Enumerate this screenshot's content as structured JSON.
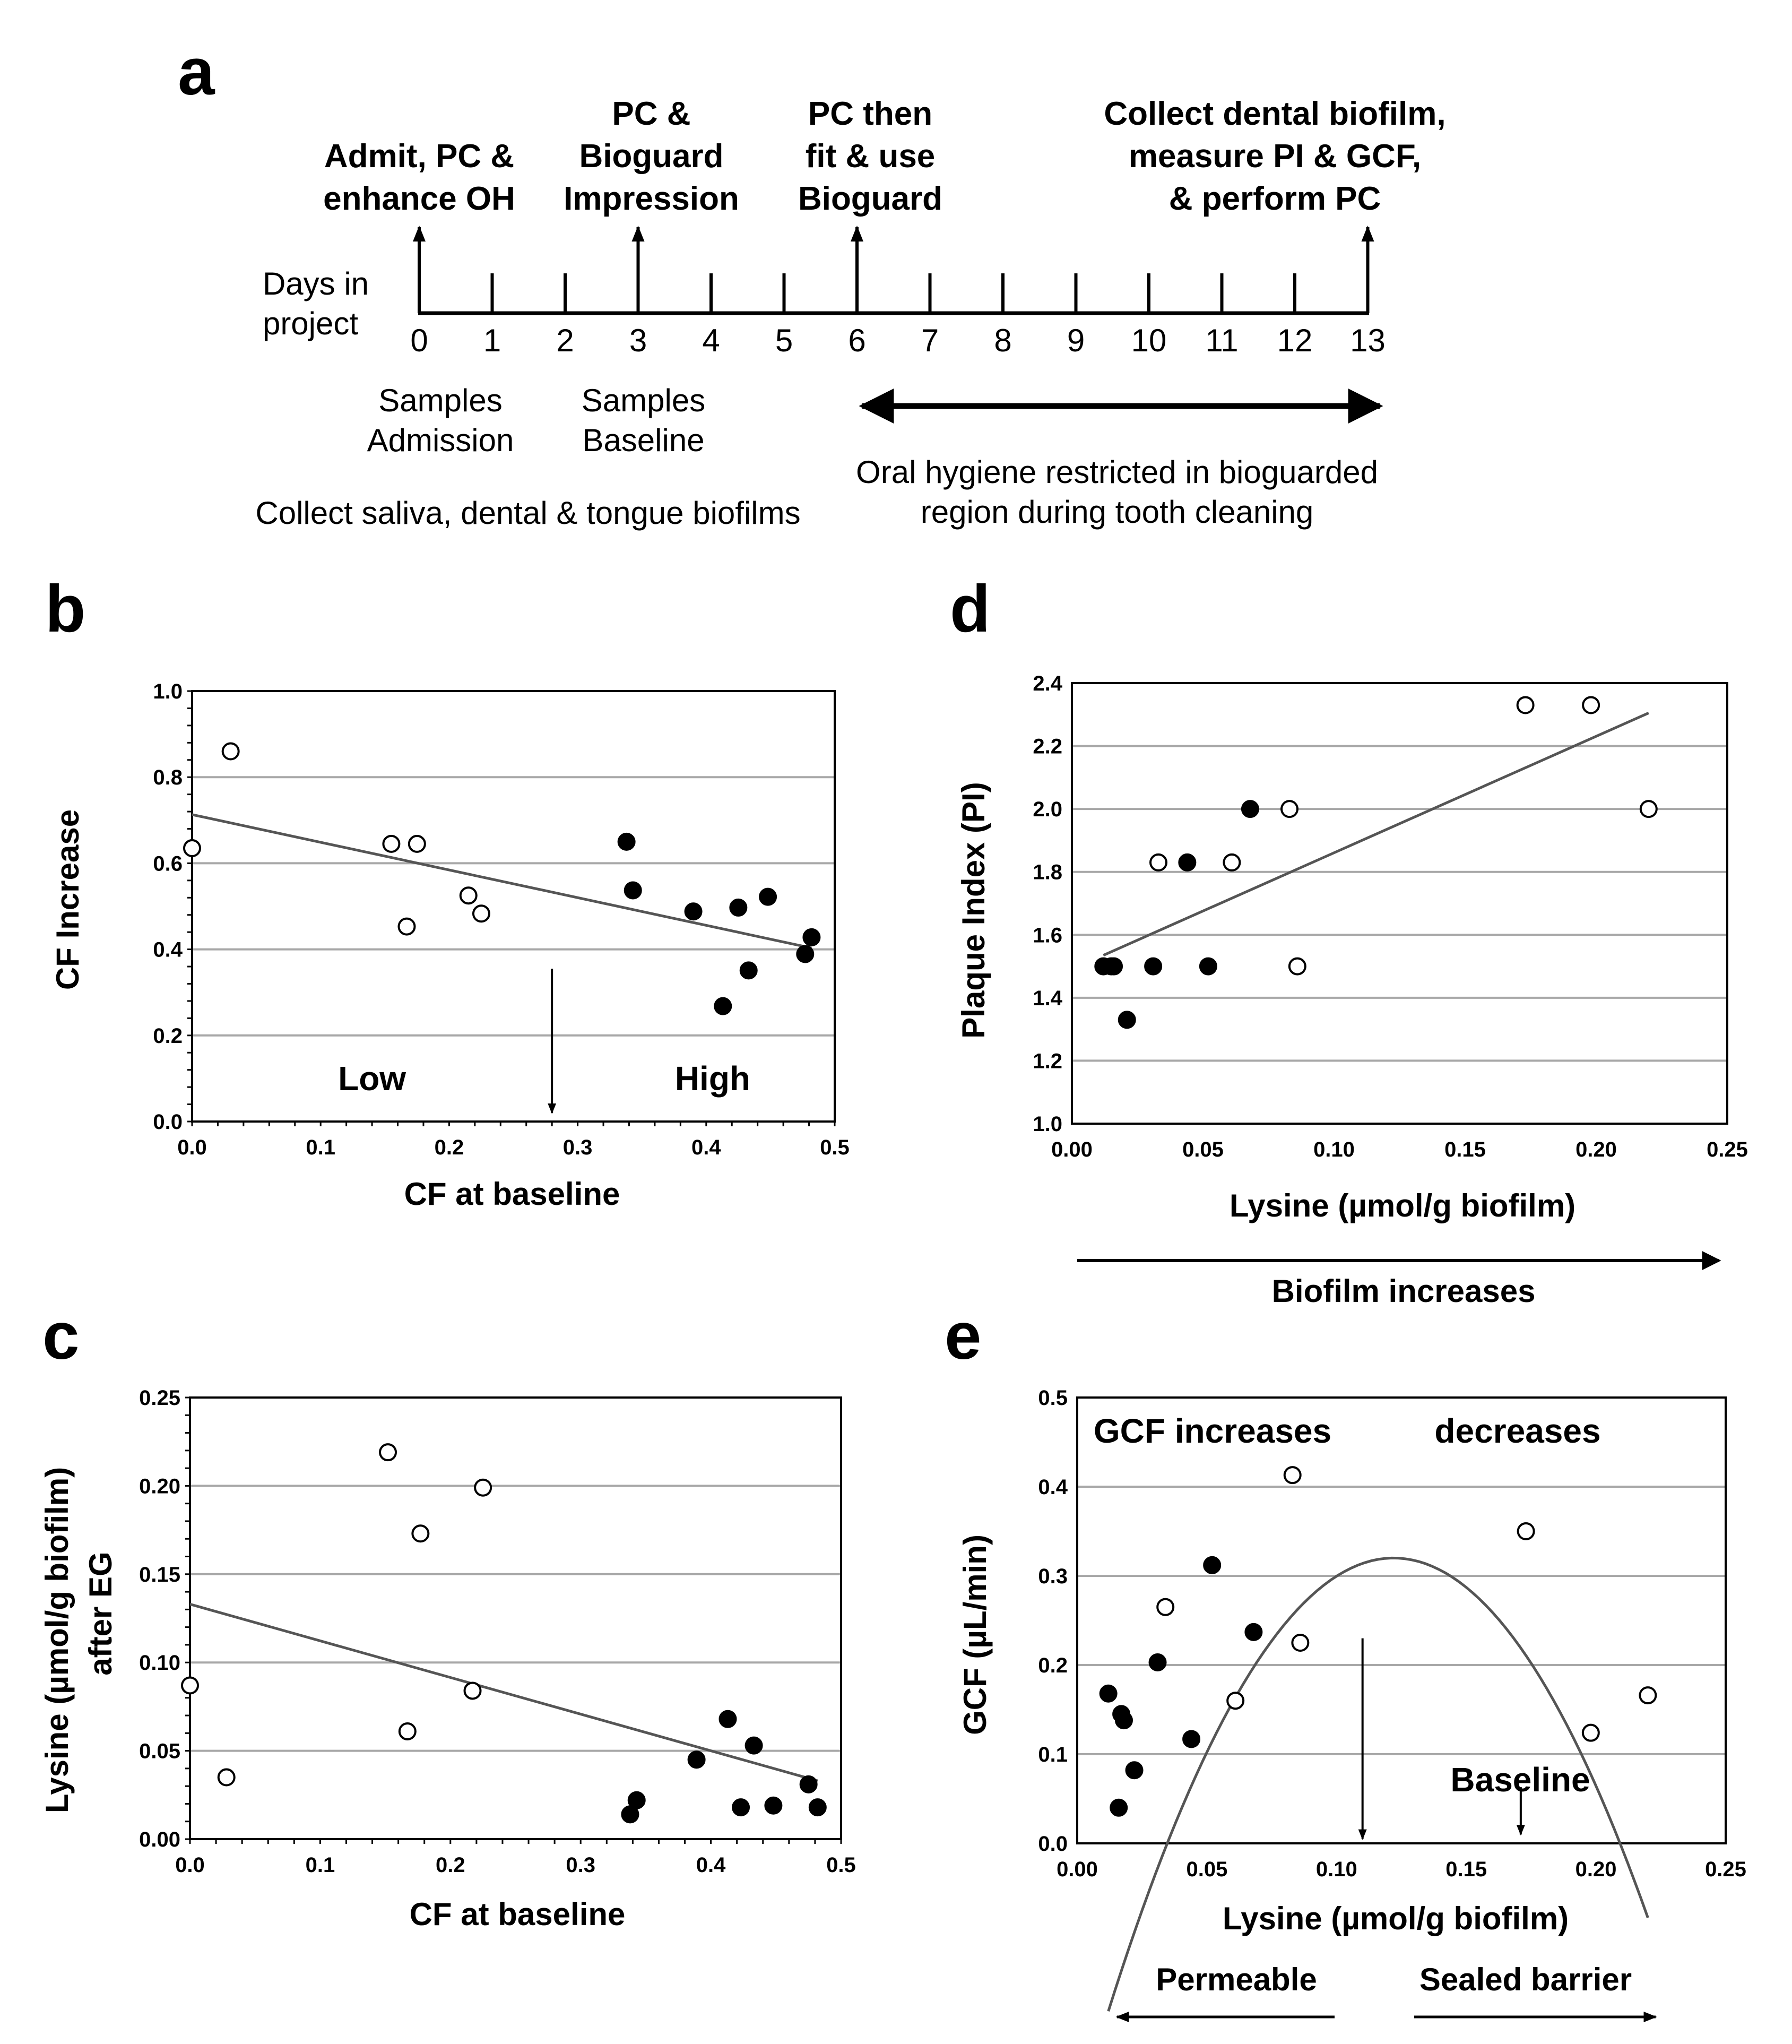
{
  "panel_a": {
    "letter": "a",
    "days_label_lines": [
      "Days in",
      "project"
    ],
    "days": [
      "0",
      "1",
      "2",
      "3",
      "4",
      "5",
      "6",
      "7",
      "8",
      "9",
      "10",
      "11",
      "12",
      "13"
    ],
    "events": [
      {
        "day": 0,
        "lines": [
          "Admit, PC &",
          "enhance OH"
        ]
      },
      {
        "day": 3,
        "lines": [
          "PC &",
          "Bioguard",
          "Impression"
        ]
      },
      {
        "day": 6,
        "lines": [
          "PC then",
          "fit & use",
          "Bioguard"
        ]
      },
      {
        "day": 13,
        "lines": [
          "Collect dental biofilm,",
          "measure PI & GCF,",
          "& perform PC"
        ]
      }
    ],
    "samples": [
      {
        "day": 0,
        "lines": [
          "Samples",
          "Admission"
        ]
      },
      {
        "day": 3,
        "lines": [
          "Samples",
          "Baseline"
        ]
      }
    ],
    "collect_text": "Collect saliva, dental & tongue biofilms",
    "hygiene_lines": [
      "Oral hygiene restricted in bioguarded",
      "region during tooth cleaning"
    ]
  },
  "chart_data": [
    {
      "id": "b",
      "type": "scatter",
      "letter": "b",
      "xlabel": "CF at baseline",
      "ylabel": "CF Increase",
      "xlim": [
        0,
        0.5
      ],
      "ylim": [
        0,
        1.0
      ],
      "xticks": [
        "0.0",
        "0.1",
        "0.2",
        "0.3",
        "0.4",
        "0.5"
      ],
      "yticks": [
        "0.0",
        "0.2",
        "0.4",
        "0.6",
        "0.8",
        "1.0"
      ],
      "x_minor": 0.02,
      "y_minor": 0.04,
      "series": [
        {
          "name": "Low",
          "style": "open",
          "x": [
            0.0,
            0.03,
            0.155,
            0.175,
            0.167,
            0.215,
            0.225
          ],
          "y": [
            0.635,
            0.86,
            0.645,
            0.645,
            0.453,
            0.525,
            0.483
          ]
        },
        {
          "name": "High",
          "style": "filled",
          "x": [
            0.338,
            0.343,
            0.39,
            0.413,
            0.425,
            0.433,
            0.448,
            0.477,
            0.482
          ],
          "y": [
            0.65,
            0.537,
            0.488,
            0.268,
            0.497,
            0.351,
            0.522,
            0.389,
            0.428
          ]
        }
      ],
      "fit": {
        "kind": "linear",
        "points": [
          [
            0.0,
            0.713
          ],
          [
            0.482,
            0.403
          ]
        ]
      },
      "annotations": [
        {
          "text": "Low",
          "x": 0.14,
          "y": 0.1
        },
        {
          "text": "High",
          "x": 0.405,
          "y": 0.1
        }
      ],
      "arrow": {
        "x": 0.28,
        "y_from": 0.355,
        "y_to": 0.02
      }
    },
    {
      "id": "c",
      "type": "scatter",
      "letter": "c",
      "xlabel": "CF at baseline",
      "ylabel_lines": [
        "Lysine (µmol/g biofilm)",
        "after EG"
      ],
      "xlim": [
        0,
        0.5
      ],
      "ylim": [
        0,
        0.25
      ],
      "xticks": [
        "0.0",
        "0.1",
        "0.2",
        "0.3",
        "0.4",
        "0.5"
      ],
      "yticks": [
        "0.00",
        "0.05",
        "0.10",
        "0.15",
        "0.20",
        "0.25"
      ],
      "x_minor": 0.02,
      "y_minor": 0.01,
      "series": [
        {
          "name": "Low",
          "style": "open",
          "x": [
            0.0,
            0.028,
            0.152,
            0.177,
            0.167,
            0.217,
            0.225
          ],
          "y": [
            0.087,
            0.035,
            0.219,
            0.173,
            0.061,
            0.084,
            0.199
          ]
        },
        {
          "name": "High",
          "style": "filled",
          "x": [
            0.338,
            0.343,
            0.389,
            0.413,
            0.423,
            0.433,
            0.448,
            0.475,
            0.482
          ],
          "y": [
            0.014,
            0.022,
            0.045,
            0.068,
            0.018,
            0.053,
            0.019,
            0.031,
            0.018
          ]
        }
      ],
      "fit": {
        "kind": "linear",
        "points": [
          [
            0.0,
            0.133
          ],
          [
            0.482,
            0.033
          ]
        ]
      }
    },
    {
      "id": "d",
      "type": "scatter",
      "letter": "d",
      "xlabel": "Lysine (µmol/g biofilm)",
      "ylabel": "Plaque Index (PI)",
      "xlim": [
        0,
        0.25
      ],
      "ylim": [
        1.0,
        2.4
      ],
      "xticks": [
        "0.00",
        "0.05",
        "0.10",
        "0.15",
        "0.20",
        "0.25"
      ],
      "yticks": [
        "1.0",
        "1.2",
        "1.4",
        "1.6",
        "1.8",
        "2.0",
        "2.2",
        "2.4"
      ],
      "series": [
        {
          "name": "Low",
          "style": "open",
          "x": [
            0.015,
            0.033,
            0.061,
            0.083,
            0.086,
            0.173,
            0.198,
            0.22
          ],
          "y": [
            1.5,
            1.83,
            1.83,
            2.0,
            1.5,
            2.33,
            2.33,
            2.0
          ]
        },
        {
          "name": "High",
          "style": "filled",
          "x": [
            0.012,
            0.016,
            0.021,
            0.031,
            0.044,
            0.052,
            0.068
          ],
          "y": [
            1.5,
            1.5,
            1.33,
            1.5,
            1.83,
            1.5,
            2.0
          ]
        }
      ],
      "fit": {
        "kind": "linear",
        "points": [
          [
            0.012,
            1.535
          ],
          [
            0.22,
            2.305
          ]
        ]
      },
      "below_arrow_text": "Biofilm increases"
    },
    {
      "id": "e",
      "type": "scatter",
      "letter": "e",
      "xlabel": "Lysine (µmol/g biofilm)",
      "ylabel": "GCF (µL/min)",
      "xlim": [
        0,
        0.25
      ],
      "ylim": [
        0,
        0.5
      ],
      "xticks": [
        "0.00",
        "0.05",
        "0.10",
        "0.15",
        "0.20",
        "0.25"
      ],
      "yticks": [
        "0.0",
        "0.1",
        "0.2",
        "0.3",
        "0.4",
        "0.5"
      ],
      "series": [
        {
          "name": "Low",
          "style": "open",
          "x": [
            0.034,
            0.061,
            0.083,
            0.086,
            0.173,
            0.198,
            0.22
          ],
          "y": [
            0.265,
            0.16,
            0.413,
            0.225,
            0.35,
            0.124,
            0.166
          ]
        },
        {
          "name": "High",
          "style": "filled",
          "x": [
            0.012,
            0.016,
            0.017,
            0.018,
            0.022,
            0.031,
            0.044,
            0.052,
            0.068
          ],
          "y": [
            0.168,
            0.04,
            0.145,
            0.138,
            0.082,
            0.203,
            0.117,
            0.312,
            0.237
          ]
        }
      ],
      "fit": {
        "kind": "quadratic",
        "vertex_x": 0.122,
        "vertex_y": 0.32,
        "a": -42.0,
        "x_from": 0.012,
        "x_to": 0.22
      },
      "annotations_top": [
        "GCF increases",
        "decreases"
      ],
      "baseline_text": "Baseline",
      "arrows": [
        {
          "x": 0.11,
          "y_from": 0.23,
          "y_to": 0.005
        },
        {
          "x": 0.171,
          "y_from": 0.063,
          "y_to": 0.01
        }
      ],
      "below_left": "Permeable",
      "below_right": "Sealed barrier"
    }
  ]
}
